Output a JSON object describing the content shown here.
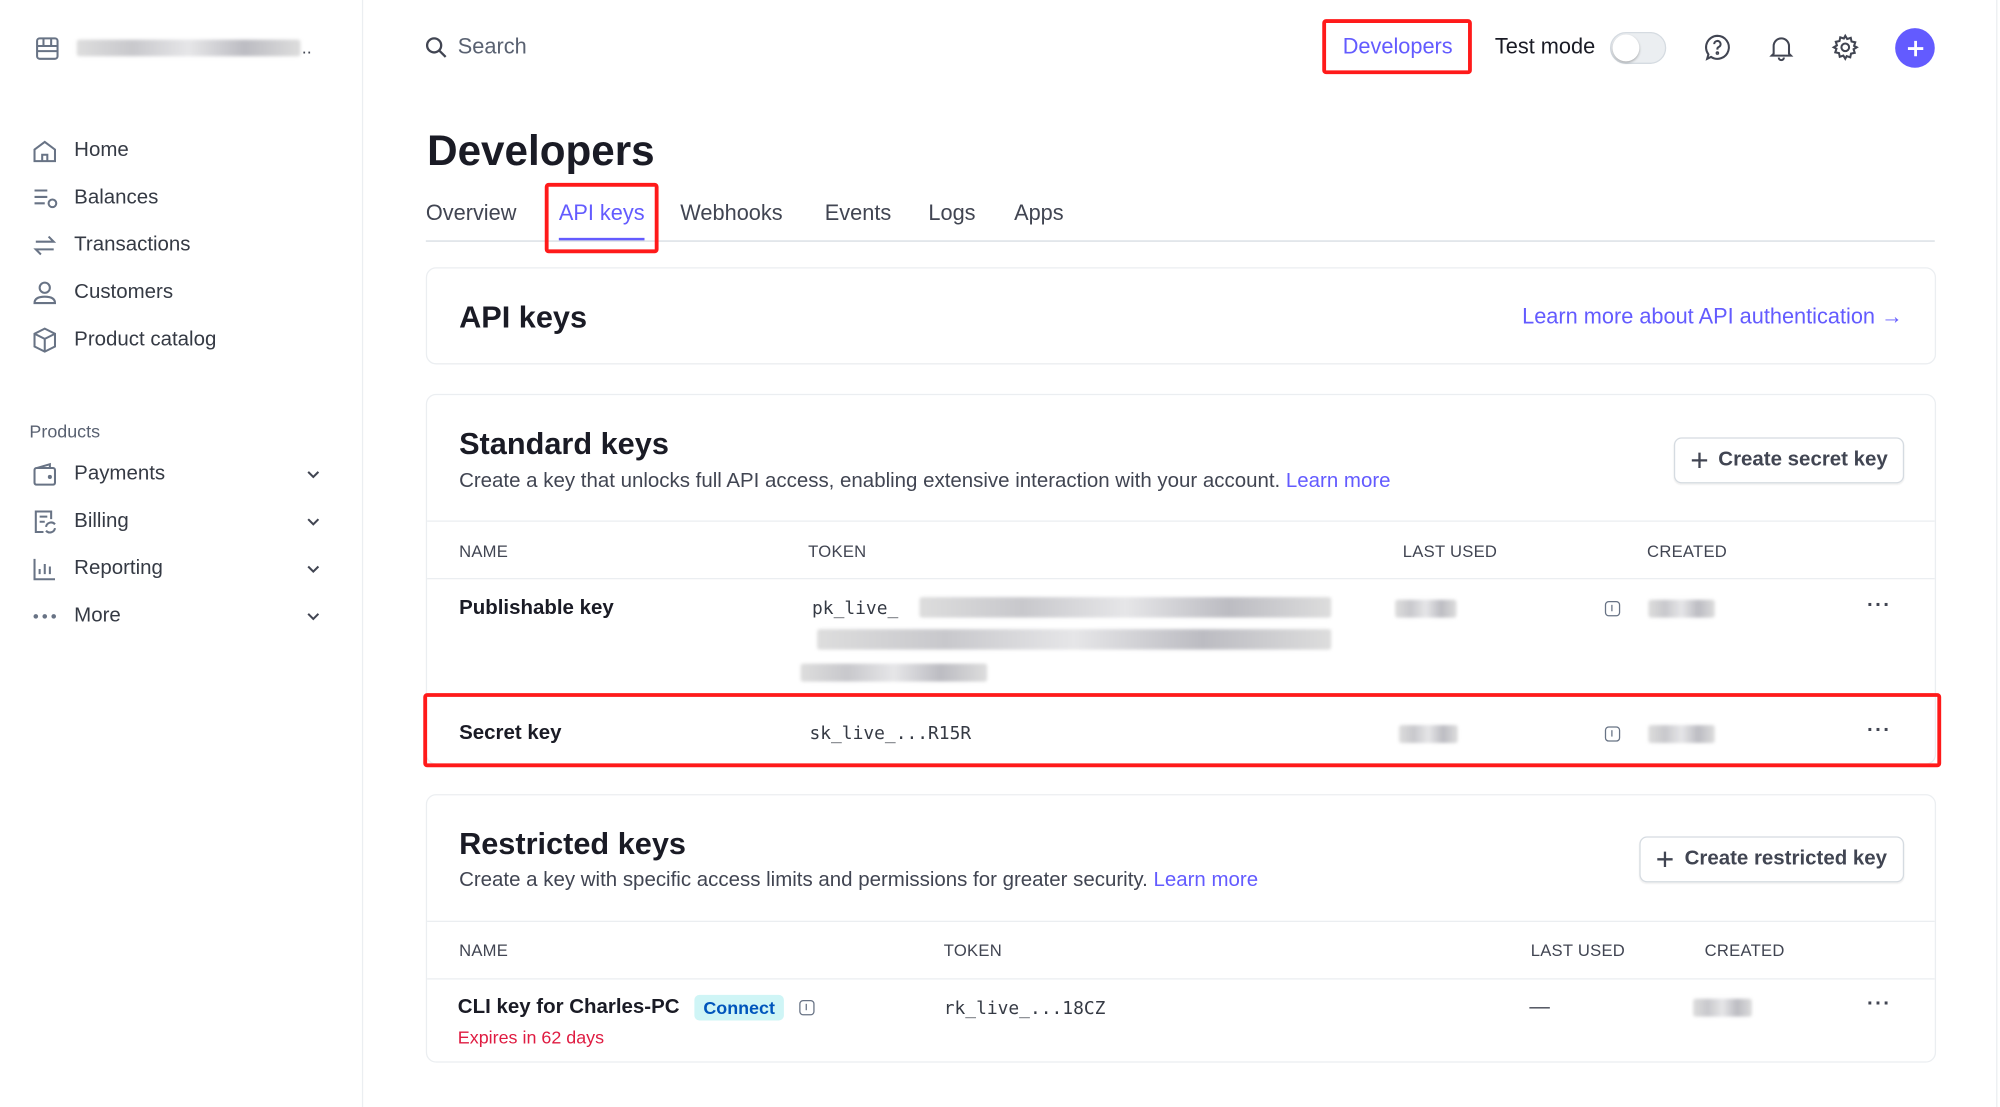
{
  "sidebar": {
    "account_name": "[redacted]",
    "nav": [
      {
        "label": "Home",
        "icon": "home-icon"
      },
      {
        "label": "Balances",
        "icon": "balances-icon"
      },
      {
        "label": "Transactions",
        "icon": "transactions-icon"
      },
      {
        "label": "Customers",
        "icon": "customer-icon"
      },
      {
        "label": "Product catalog",
        "icon": "box-icon"
      }
    ],
    "products_heading": "Products",
    "products": [
      {
        "label": "Payments",
        "icon": "wallet-icon"
      },
      {
        "label": "Billing",
        "icon": "billing-icon"
      },
      {
        "label": "Reporting",
        "icon": "chart-icon"
      },
      {
        "label": "More",
        "icon": "more-icon"
      }
    ]
  },
  "topbar": {
    "search_placeholder": "Search",
    "developers": "Developers",
    "test_mode": "Test mode",
    "test_mode_on": false,
    "accent": "#635bff"
  },
  "page": {
    "title": "Developers",
    "tabs": [
      "Overview",
      "API keys",
      "Webhooks",
      "Events",
      "Logs",
      "Apps"
    ],
    "active_tab": "API keys"
  },
  "api_keys_card": {
    "title": "API keys",
    "link": "Learn more about API authentication →"
  },
  "standard": {
    "title": "Standard keys",
    "desc": "Create a key that unlocks full API access, enabling extensive interaction with your account.",
    "learn_more": "Learn more",
    "button": "Create secret key",
    "columns": [
      "NAME",
      "TOKEN",
      "LAST USED",
      "CREATED"
    ],
    "rows": [
      {
        "name": "Publishable key",
        "token": "pk_live_"
      },
      {
        "name": "Secret key",
        "token": "sk_live_...R15R"
      }
    ]
  },
  "restricted": {
    "title": "Restricted keys",
    "desc": "Create a key with specific access limits and permissions for greater security.",
    "learn_more": "Learn more",
    "button": "Create restricted key",
    "columns": [
      "NAME",
      "TOKEN",
      "LAST USED",
      "CREATED"
    ],
    "rows": [
      {
        "name": "CLI key for Charles-PC",
        "badge": "Connect",
        "expires": "Expires in 62 days",
        "token": "rk_live_...18CZ",
        "last_used": "—"
      }
    ]
  }
}
